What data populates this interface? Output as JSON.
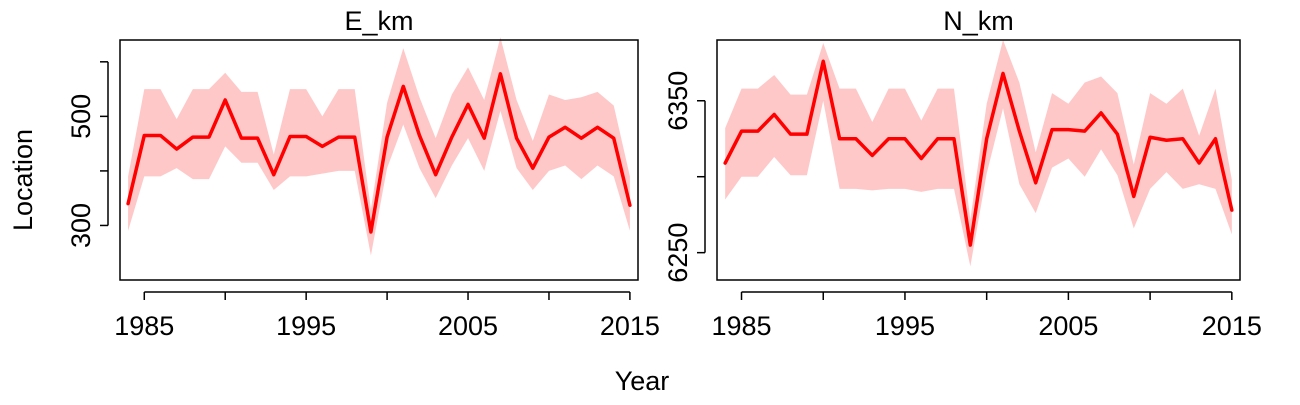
{
  "figure": {
    "xlabel": "Year",
    "ylabel": "Location"
  },
  "colors": {
    "line": "#ff0000",
    "band": "#ffc8c8",
    "axis": "#000000"
  },
  "chart_data": [
    {
      "type": "line",
      "title": "E_km",
      "xlabel": "Year",
      "ylabel": "Location",
      "xlim": [
        1983.5,
        2015.5
      ],
      "ylim": [
        200,
        640
      ],
      "x_ticks": [
        1985,
        1990,
        1995,
        2000,
        2005,
        2010,
        2015
      ],
      "x_tick_labels": [
        "1985",
        "1995",
        "2005",
        "2015"
      ],
      "y_ticks": [
        300,
        400,
        500,
        600
      ],
      "y_tick_labels": [
        "300",
        "500"
      ],
      "x": [
        1984,
        1985,
        1986,
        1987,
        1988,
        1989,
        1990,
        1991,
        1992,
        1993,
        1994,
        1995,
        1996,
        1997,
        1998,
        1999,
        2000,
        2001,
        2002,
        2003,
        2004,
        2005,
        2006,
        2007,
        2008,
        2009,
        2010,
        2011,
        2012,
        2013,
        2014,
        2015
      ],
      "series": [
        {
          "values": [
            340,
            465,
            465,
            440,
            462,
            462,
            530,
            460,
            460,
            393,
            463,
            463,
            445,
            462,
            462,
            288,
            462,
            555,
            465,
            393,
            462,
            522,
            460,
            578,
            460,
            405,
            462,
            480,
            460,
            480,
            460,
            337
          ],
          "lower": [
            290,
            390,
            390,
            405,
            385,
            385,
            445,
            415,
            415,
            365,
            390,
            390,
            395,
            400,
            400,
            245,
            405,
            485,
            405,
            350,
            410,
            460,
            400,
            510,
            405,
            365,
            400,
            410,
            385,
            410,
            390,
            290
          ],
          "upper": [
            390,
            550,
            550,
            495,
            550,
            550,
            580,
            545,
            545,
            430,
            550,
            550,
            500,
            550,
            550,
            330,
            525,
            625,
            535,
            460,
            540,
            590,
            530,
            645,
            530,
            455,
            540,
            530,
            535,
            545,
            520,
            390
          ]
        }
      ]
    },
    {
      "type": "line",
      "title": "N_km",
      "xlabel": "Year",
      "ylabel": "Location",
      "xlim": [
        1983.5,
        2015.5
      ],
      "ylim": [
        6232,
        6390
      ],
      "x_ticks": [
        1985,
        1990,
        1995,
        2000,
        2005,
        2010,
        2015
      ],
      "x_tick_labels": [
        "1985",
        "1995",
        "2005",
        "2015"
      ],
      "y_ticks": [
        6250,
        6300,
        6350
      ],
      "y_tick_labels": [
        "6250",
        "6350"
      ],
      "x": [
        1984,
        1985,
        1986,
        1987,
        1988,
        1989,
        1990,
        1991,
        1992,
        1993,
        1994,
        1995,
        1996,
        1997,
        1998,
        1999,
        2000,
        2001,
        2002,
        2003,
        2004,
        2005,
        2006,
        2007,
        2008,
        2009,
        2010,
        2011,
        2012,
        2013,
        2014,
        2015
      ],
      "series": [
        {
          "values": [
            6309,
            6330,
            6330,
            6341,
            6328,
            6328,
            6376,
            6325,
            6325,
            6314,
            6325,
            6325,
            6312,
            6325,
            6325,
            6255,
            6325,
            6368,
            6330,
            6296,
            6331,
            6331,
            6330,
            6342,
            6328,
            6287,
            6326,
            6324,
            6325,
            6309,
            6325,
            6278
          ],
          "lower": [
            6285,
            6300,
            6300,
            6313,
            6301,
            6301,
            6350,
            6292,
            6292,
            6291,
            6292,
            6292,
            6290,
            6292,
            6292,
            6241,
            6302,
            6345,
            6295,
            6276,
            6306,
            6312,
            6300,
            6318,
            6301,
            6266,
            6292,
            6303,
            6292,
            6295,
            6292,
            6262
          ],
          "upper": [
            6332,
            6358,
            6358,
            6367,
            6354,
            6354,
            6388,
            6358,
            6358,
            6336,
            6358,
            6358,
            6337,
            6358,
            6358,
            6272,
            6348,
            6390,
            6362,
            6316,
            6355,
            6348,
            6362,
            6366,
            6355,
            6308,
            6355,
            6348,
            6358,
            6327,
            6358,
            6298
          ]
        }
      ]
    }
  ]
}
